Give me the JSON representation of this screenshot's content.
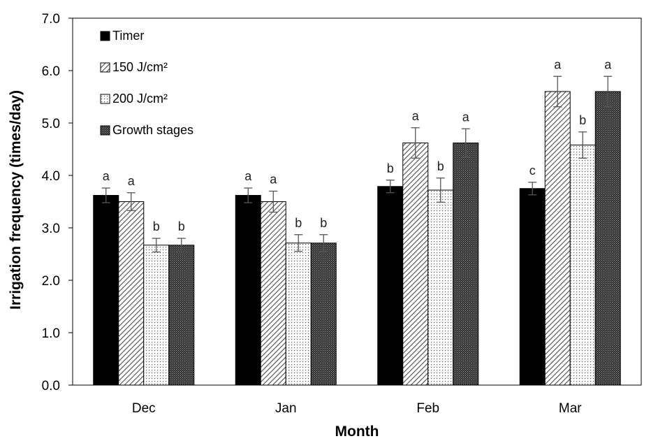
{
  "chart_data": {
    "type": "bar",
    "title": "",
    "xlabel": "Month",
    "ylabel": "Irrigation frequency (times/day)",
    "ylim": [
      0,
      7
    ],
    "yticks": [
      "0.0",
      "1.0",
      "2.0",
      "3.0",
      "4.0",
      "5.0",
      "6.0",
      "7.0"
    ],
    "categories": [
      "Dec",
      "Jan",
      "Feb",
      "Mar"
    ],
    "grid": false,
    "legend_position": "top-left",
    "series": [
      {
        "name": "Timer",
        "pattern": "solid",
        "color": "#000000",
        "values": [
          3.62,
          3.62,
          3.79,
          3.75
        ],
        "errors": [
          0.14,
          0.14,
          0.12,
          0.12
        ],
        "labels": [
          "a",
          "a",
          "b",
          "c"
        ]
      },
      {
        "name": "150 J/cm²",
        "pattern": "diagonal",
        "color": "#555555",
        "values": [
          3.5,
          3.5,
          4.62,
          5.6
        ],
        "errors": [
          0.17,
          0.2,
          0.29,
          0.29
        ],
        "labels": [
          "a",
          "a",
          "a",
          "a"
        ]
      },
      {
        "name": "200 J/cm²",
        "pattern": "dots",
        "color": "#777777",
        "values": [
          2.67,
          2.71,
          3.72,
          4.58
        ],
        "errors": [
          0.13,
          0.16,
          0.23,
          0.25
        ],
        "labels": [
          "b",
          "b",
          "b",
          "b"
        ]
      },
      {
        "name": "Growth stages",
        "pattern": "dense",
        "color": "#333333",
        "values": [
          2.67,
          2.71,
          4.62,
          5.6
        ],
        "errors": [
          0.13,
          0.16,
          0.27,
          0.29
        ],
        "labels": [
          "b",
          "b",
          "a",
          "a"
        ]
      }
    ]
  }
}
